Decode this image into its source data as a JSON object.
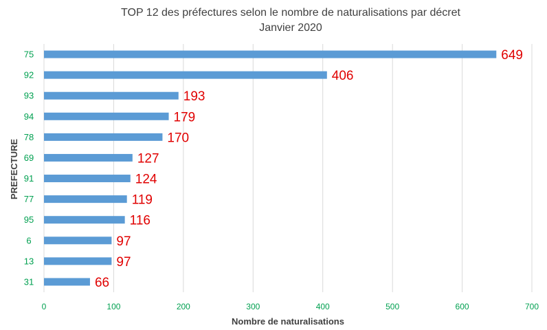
{
  "chart_data": {
    "type": "bar",
    "orientation": "horizontal",
    "title": "TOP 12 des préfectures selon le nombre de naturalisations par décret",
    "subtitle": "Janvier 2020",
    "xlabel": "Nombre de naturalisations",
    "ylabel": "PREFECTURE",
    "categories": [
      "75",
      "92",
      "93",
      "94",
      "78",
      "69",
      "91",
      "77",
      "95",
      "6",
      "13",
      "31"
    ],
    "values": [
      649,
      406,
      193,
      179,
      170,
      127,
      124,
      119,
      116,
      97,
      97,
      66
    ],
    "xlim": [
      0,
      700
    ],
    "xticks": [
      0,
      100,
      200,
      300,
      400,
      500,
      600,
      700
    ],
    "grid": "vertical",
    "legend": "none",
    "colors": {
      "bar": "#5b9bd5",
      "data_label": "#e00000",
      "tick_label": "#00a050",
      "text": "#404040",
      "grid": "#d9d9d9"
    }
  }
}
